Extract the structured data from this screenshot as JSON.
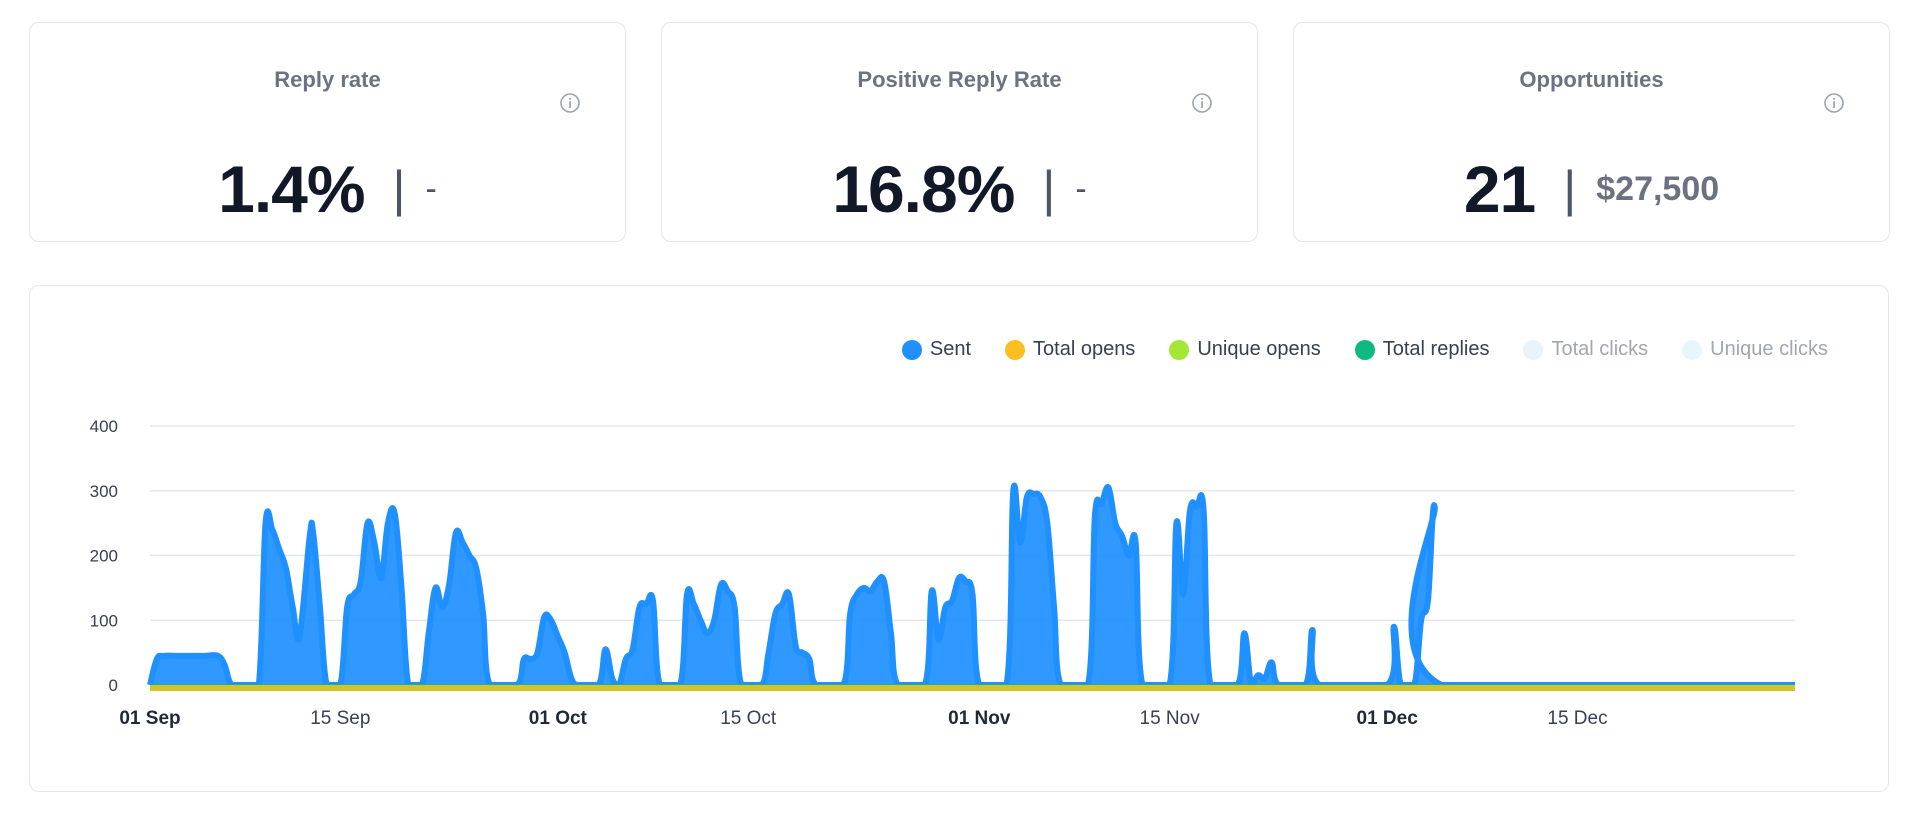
{
  "cards": [
    {
      "title": "Reply rate",
      "value": "1.4%",
      "separator": "|",
      "sub": "-"
    },
    {
      "title": "Positive Reply Rate",
      "value": "16.8%",
      "separator": "|",
      "sub": "-"
    },
    {
      "title": "Opportunities",
      "value": "21",
      "separator": "|",
      "sub": "$27,500"
    }
  ],
  "icons": {
    "info": "info-circle-icon"
  },
  "colors": {
    "sent": "#1e90ff",
    "total_opens": "#fbbf24",
    "unique_opens": "#a3e635",
    "total_replies": "#10b981",
    "total_clicks": "#e8f4fd",
    "unique_clicks": "#e6f7fb",
    "baseline": "#d4c32a"
  },
  "chart_data": {
    "type": "area",
    "legend_position": "top-right",
    "legend": [
      {
        "name": "Sent",
        "color": "#1e90ff",
        "active": true
      },
      {
        "name": "Total opens",
        "color": "#fbbf24",
        "active": true
      },
      {
        "name": "Unique opens",
        "color": "#a3e635",
        "active": true
      },
      {
        "name": "Total replies",
        "color": "#10b981",
        "active": true
      },
      {
        "name": "Total clicks",
        "color": "#e8f4fd",
        "active": false
      },
      {
        "name": "Unique clicks",
        "color": "#e6f7fb",
        "active": false
      }
    ],
    "ylim": [
      0,
      400
    ],
    "yticks": [
      0,
      100,
      200,
      300,
      400
    ],
    "grid": true,
    "xrange": [
      "2024-09-01",
      "2024-12-31"
    ],
    "xticks": [
      {
        "date": "2024-09-01",
        "label": "01 Sep",
        "major": true
      },
      {
        "date": "2024-09-15",
        "label": "15 Sep",
        "major": false
      },
      {
        "date": "2024-10-01",
        "label": "01 Oct",
        "major": true
      },
      {
        "date": "2024-10-15",
        "label": "15 Oct",
        "major": false
      },
      {
        "date": "2024-11-01",
        "label": "01 Nov",
        "major": true
      },
      {
        "date": "2024-11-15",
        "label": "15 Nov",
        "major": false
      },
      {
        "date": "2024-12-01",
        "label": "01 Dec",
        "major": true
      },
      {
        "date": "2024-12-15",
        "label": "15 Dec",
        "major": false
      }
    ],
    "series": [
      {
        "name": "Sent",
        "points": [
          [
            "2024-09-01",
            0
          ],
          [
            "2024-09-01T12:00",
            40
          ],
          [
            "2024-09-02",
            45
          ],
          [
            "2024-09-03",
            45
          ],
          [
            "2024-09-04",
            45
          ],
          [
            "2024-09-05",
            45
          ],
          [
            "2024-09-06",
            45
          ],
          [
            "2024-09-06T12:00",
            30
          ],
          [
            "2024-09-07",
            0
          ],
          [
            "2024-09-08",
            0
          ],
          [
            "2024-09-09",
            0
          ],
          [
            "2024-09-09T12:00",
            250
          ],
          [
            "2024-09-10",
            240
          ],
          [
            "2024-09-10T12:00",
            210
          ],
          [
            "2024-09-11",
            180
          ],
          [
            "2024-09-11T12:00",
            120
          ],
          [
            "2024-09-12",
            75
          ],
          [
            "2024-09-12T18:00",
            230
          ],
          [
            "2024-09-13",
            235
          ],
          [
            "2024-09-13T12:00",
            120
          ],
          [
            "2024-09-14",
            0
          ],
          [
            "2024-09-15",
            0
          ],
          [
            "2024-09-15T12:00",
            120
          ],
          [
            "2024-09-16",
            140
          ],
          [
            "2024-09-16T12:00",
            160
          ],
          [
            "2024-09-17",
            250
          ],
          [
            "2024-09-17T12:00",
            220
          ],
          [
            "2024-09-18",
            165
          ],
          [
            "2024-09-18T12:00",
            250
          ],
          [
            "2024-09-19",
            265
          ],
          [
            "2024-09-19T12:00",
            150
          ],
          [
            "2024-09-20",
            0
          ],
          [
            "2024-09-21",
            0
          ],
          [
            "2024-09-21T12:00",
            80
          ],
          [
            "2024-09-22",
            150
          ],
          [
            "2024-09-22T12:00",
            120
          ],
          [
            "2024-09-23",
            155
          ],
          [
            "2024-09-23T12:00",
            235
          ],
          [
            "2024-09-24",
            220
          ],
          [
            "2024-09-24T12:00",
            200
          ],
          [
            "2024-09-25",
            180
          ],
          [
            "2024-09-25T12:00",
            110
          ],
          [
            "2024-09-26",
            0
          ],
          [
            "2024-09-28",
            0
          ],
          [
            "2024-09-28T12:00",
            40
          ],
          [
            "2024-09-29",
            40
          ],
          [
            "2024-09-29T12:00",
            50
          ],
          [
            "2024-09-30",
            105
          ],
          [
            "2024-09-30T12:00",
            100
          ],
          [
            "2024-10-01",
            75
          ],
          [
            "2024-10-01T12:00",
            50
          ],
          [
            "2024-10-02",
            10
          ],
          [
            "2024-10-02T12:00",
            0
          ],
          [
            "2024-10-04",
            0
          ],
          [
            "2024-10-04T12:00",
            55
          ],
          [
            "2024-10-05",
            10
          ],
          [
            "2024-10-05T12:00",
            0
          ],
          [
            "2024-10-06",
            40
          ],
          [
            "2024-10-06T12:00",
            55
          ],
          [
            "2024-10-07",
            120
          ],
          [
            "2024-10-07T12:00",
            125
          ],
          [
            "2024-10-08",
            130
          ],
          [
            "2024-10-08T12:00",
            0
          ],
          [
            "2024-10-10",
            0
          ],
          [
            "2024-10-10T12:00",
            140
          ],
          [
            "2024-10-11",
            125
          ],
          [
            "2024-10-11T12:00",
            100
          ],
          [
            "2024-10-12",
            80
          ],
          [
            "2024-10-12T12:00",
            100
          ],
          [
            "2024-10-13",
            155
          ],
          [
            "2024-10-13T12:00",
            145
          ],
          [
            "2024-10-14",
            120
          ],
          [
            "2024-10-14T12:00",
            0
          ],
          [
            "2024-10-16",
            0
          ],
          [
            "2024-10-16T12:00",
            50
          ],
          [
            "2024-10-17",
            110
          ],
          [
            "2024-10-17T12:00",
            125
          ],
          [
            "2024-10-18",
            140
          ],
          [
            "2024-10-18T12:00",
            60
          ],
          [
            "2024-10-19",
            50
          ],
          [
            "2024-10-19T12:00",
            40
          ],
          [
            "2024-10-20",
            0
          ],
          [
            "2024-10-22",
            0
          ],
          [
            "2024-10-22T12:00",
            110
          ],
          [
            "2024-10-23",
            140
          ],
          [
            "2024-10-23T12:00",
            150
          ],
          [
            "2024-10-24",
            145
          ],
          [
            "2024-10-24T12:00",
            160
          ],
          [
            "2024-10-25",
            160
          ],
          [
            "2024-10-25T12:00",
            80
          ],
          [
            "2024-10-26",
            0
          ],
          [
            "2024-10-28",
            0
          ],
          [
            "2024-10-28T12:00",
            145
          ],
          [
            "2024-10-29",
            70
          ],
          [
            "2024-10-29T12:00",
            120
          ],
          [
            "2024-10-30",
            130
          ],
          [
            "2024-10-30T12:00",
            165
          ],
          [
            "2024-10-31",
            160
          ],
          [
            "2024-10-31T12:00",
            140
          ],
          [
            "2024-11-01",
            0
          ],
          [
            "2024-11-03",
            0
          ],
          [
            "2024-11-03T12:00",
            300
          ],
          [
            "2024-11-04",
            220
          ],
          [
            "2024-11-04T12:00",
            290
          ],
          [
            "2024-11-05",
            295
          ],
          [
            "2024-11-05T12:00",
            290
          ],
          [
            "2024-11-06",
            250
          ],
          [
            "2024-11-06T12:00",
            120
          ],
          [
            "2024-11-07",
            0
          ],
          [
            "2024-11-09",
            0
          ],
          [
            "2024-11-09T12:00",
            260
          ],
          [
            "2024-11-10",
            280
          ],
          [
            "2024-11-10T12:00",
            305
          ],
          [
            "2024-11-11",
            250
          ],
          [
            "2024-11-11T12:00",
            230
          ],
          [
            "2024-11-12",
            200
          ],
          [
            "2024-11-12T12:00",
            220
          ],
          [
            "2024-11-13",
            0
          ],
          [
            "2024-11-15",
            0
          ],
          [
            "2024-11-15T12:00",
            250
          ],
          [
            "2024-11-16",
            140
          ],
          [
            "2024-11-16T12:00",
            270
          ],
          [
            "2024-11-17",
            275
          ],
          [
            "2024-11-17T12:00",
            270
          ],
          [
            "2024-11-18",
            0
          ],
          [
            "2024-11-20",
            0
          ],
          [
            "2024-11-20T12:00",
            80
          ],
          [
            "2024-11-21",
            0
          ],
          [
            "2024-11-21T12:00",
            15
          ],
          [
            "2024-11-22",
            10
          ],
          [
            "2024-11-22T12:00",
            35
          ],
          [
            "2024-11-23",
            0
          ],
          [
            "2024-11-25",
            0
          ],
          [
            "2024-11-25T12:00",
            85
          ],
          [
            "2024-11-26",
            0
          ],
          [
            "2024-12-01",
            0
          ],
          [
            "2024-12-01T12:00",
            90
          ],
          [
            "2024-12-02",
            0
          ],
          [
            "2024-12-03",
            0
          ],
          [
            "2024-12-03T12:00",
            100
          ],
          [
            "2024-12-04",
            130
          ],
          [
            "2024-12-04T12:00",
            275
          ],
          [
            "2024-12-05",
            0
          ],
          [
            "2024-12-31",
            0
          ]
        ]
      }
    ]
  }
}
